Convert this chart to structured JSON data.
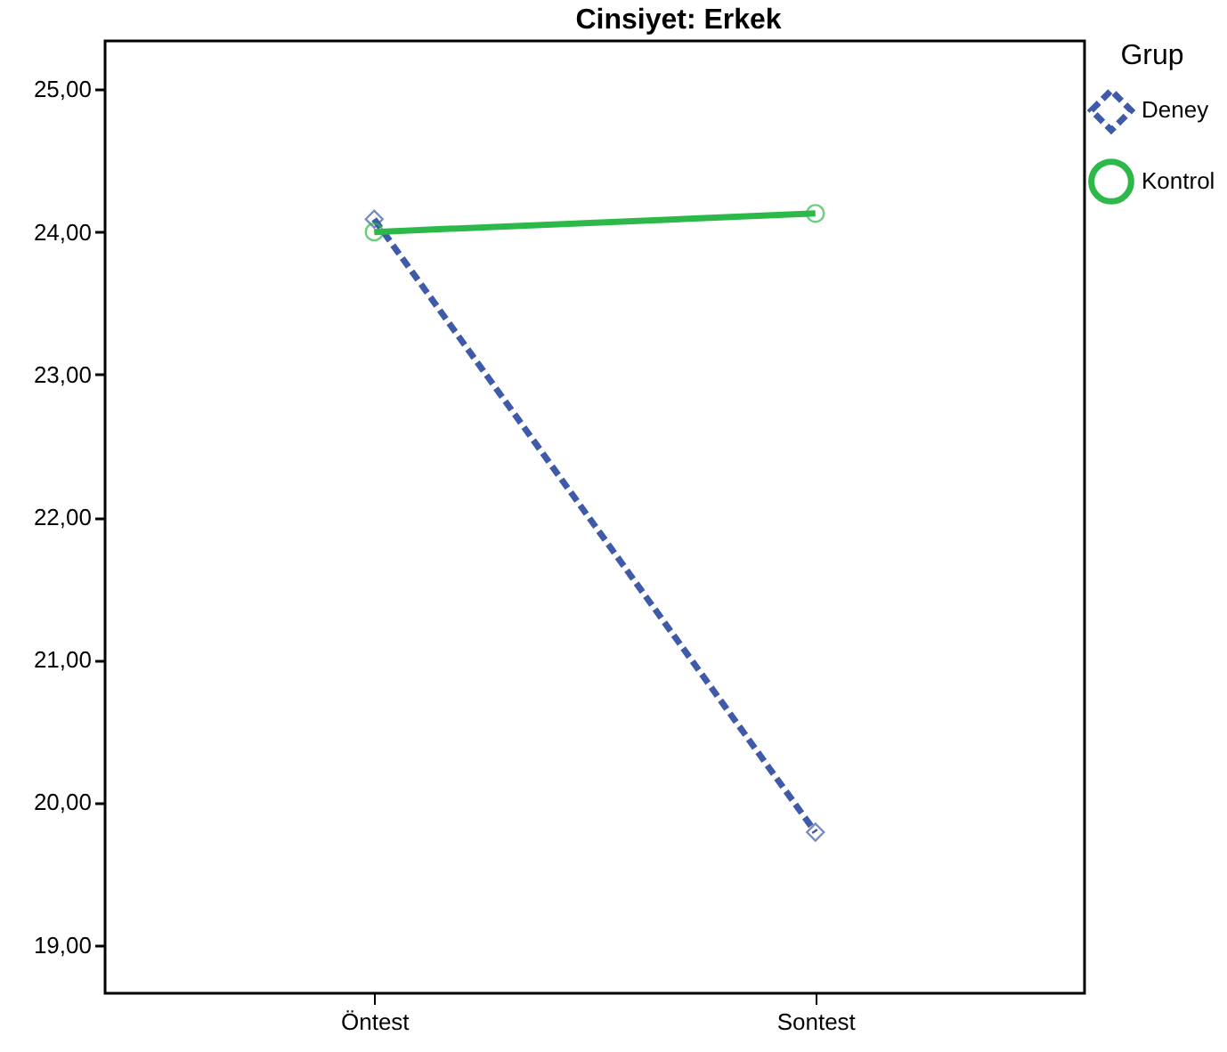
{
  "chart_data": {
    "type": "line",
    "title": "Cinsiyet: Erkek",
    "legend_title": "Grup",
    "legend": "top right",
    "grid": false,
    "categories": [
      "Öntest",
      "Sontest"
    ],
    "series": [
      {
        "name": "Deney",
        "color": "#3f5aa8",
        "values": [
          24.09,
          19.79
        ],
        "marker": "diamond",
        "line_style": "dashed"
      },
      {
        "name": "Kontrol",
        "color": "#2db84a",
        "values": [
          24.0,
          24.13
        ],
        "marker": "circle",
        "line_style": "solid"
      }
    ],
    "ylim": [
      18.66,
      25.34
    ],
    "yticks": [
      {
        "value": 19,
        "label": "19,00"
      },
      {
        "value": 20,
        "label": "20,00"
      },
      {
        "value": 21,
        "label": "21,00"
      },
      {
        "value": 22,
        "label": "22,00"
      },
      {
        "value": 23,
        "label": "23,00"
      },
      {
        "value": 24,
        "label": "24,00"
      },
      {
        "value": 25,
        "label": "25,00"
      }
    ]
  }
}
